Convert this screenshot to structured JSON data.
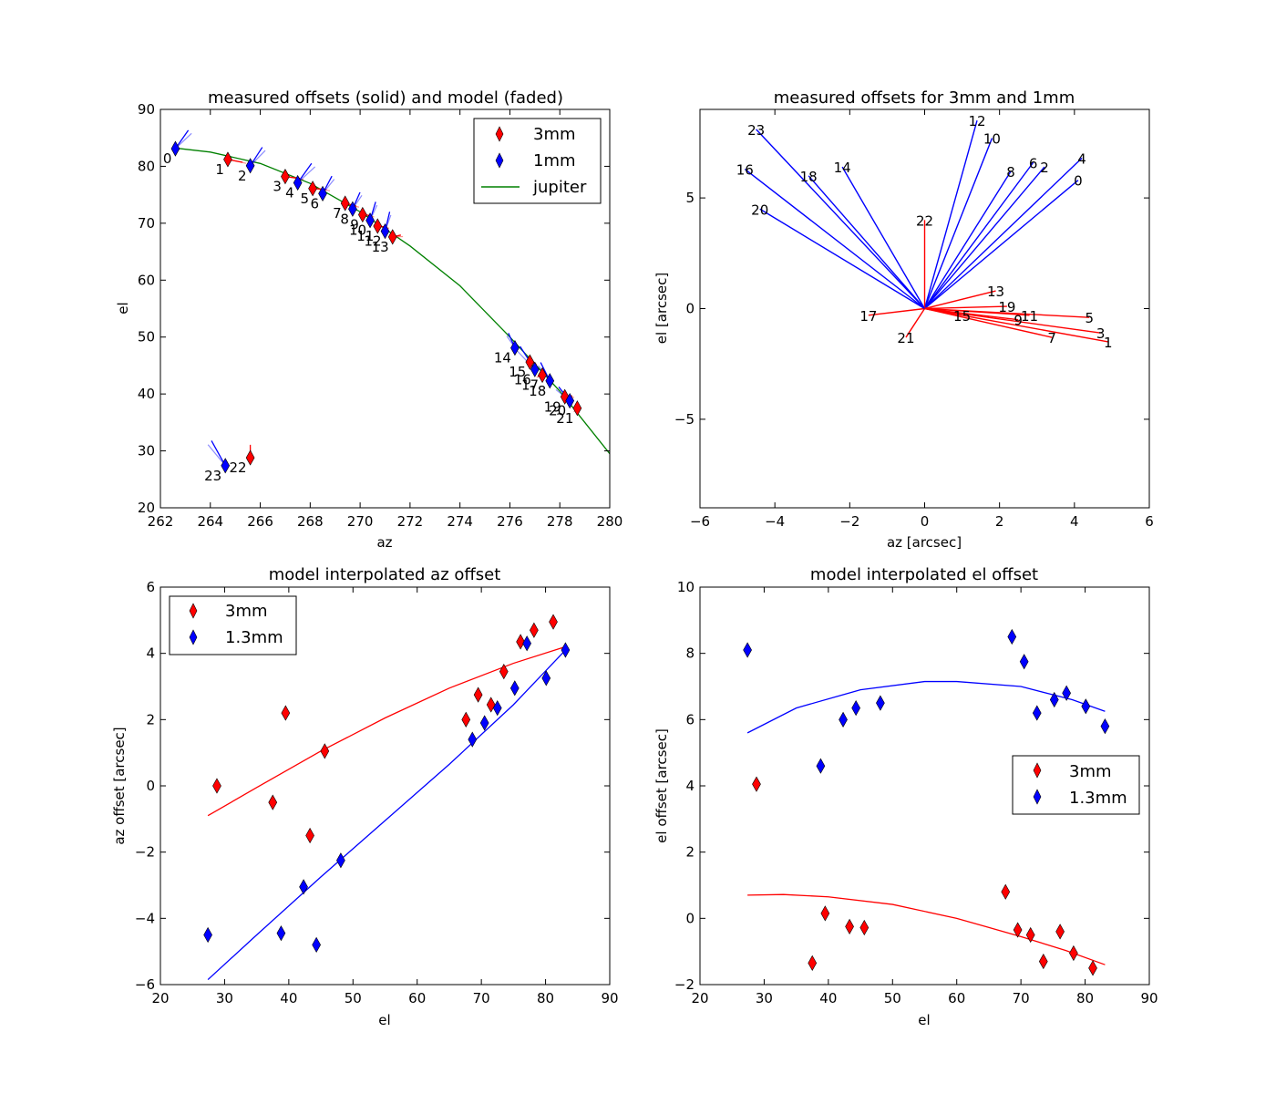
{
  "chart_data": [
    {
      "id": "tl",
      "type": "scatter",
      "title": "measured offsets (solid) and model (faded)",
      "xlabel": "az",
      "ylabel": "el",
      "xlim": [
        262,
        280
      ],
      "ylim": [
        20,
        90
      ],
      "xticks": [
        262,
        264,
        266,
        268,
        270,
        272,
        274,
        276,
        278,
        280
      ],
      "yticks": [
        20,
        30,
        40,
        50,
        60,
        70,
        80,
        90
      ],
      "legend_position": "top-right",
      "legend": [
        {
          "label": "3mm",
          "marker": "diamond",
          "color": "#ff0000"
        },
        {
          "label": "1mm",
          "marker": "diamond",
          "color": "#0000ff"
        },
        {
          "label": "jupiter",
          "marker": "line",
          "color": "#008000"
        }
      ],
      "jupiter_track": {
        "az": [
          262.6,
          264,
          266,
          268,
          270,
          272,
          274,
          276,
          278,
          280
        ],
        "el": [
          83.2,
          82.5,
          80.5,
          77.0,
          72.0,
          66.0,
          59.0,
          50.0,
          40.5,
          29.5
        ]
      },
      "points": [
        {
          "label": "0",
          "az": 262.6,
          "el": 83.1,
          "band": "1mm",
          "vec": [
            1.4,
            2.0
          ]
        },
        {
          "label": "1",
          "az": 264.7,
          "el": 81.2,
          "band": "3mm",
          "vec": [
            1.6,
            -0.3
          ]
        },
        {
          "label": "2",
          "az": 265.6,
          "el": 80.1,
          "band": "1mm",
          "vec": [
            1.3,
            2.0
          ]
        },
        {
          "label": "3",
          "az": 267.0,
          "el": 78.2,
          "band": "3mm",
          "vec": [
            1.6,
            -0.2
          ]
        },
        {
          "label": "4",
          "az": 267.5,
          "el": 77.1,
          "band": "1mm",
          "vec": [
            1.5,
            2.1
          ]
        },
        {
          "label": "5",
          "az": 268.1,
          "el": 76.1,
          "band": "3mm",
          "vec": [
            1.5,
            -0.1
          ]
        },
        {
          "label": "6",
          "az": 268.5,
          "el": 75.2,
          "band": "1mm",
          "vec": [
            1.0,
            1.9
          ]
        },
        {
          "label": "7",
          "az": 269.4,
          "el": 73.5,
          "band": "3mm",
          "vec": [
            1.2,
            -0.3
          ]
        },
        {
          "label": "8",
          "az": 269.7,
          "el": 72.5,
          "band": "1mm",
          "vec": [
            0.8,
            1.8
          ]
        },
        {
          "label": "9",
          "az": 270.1,
          "el": 71.5,
          "band": "3mm",
          "vec": [
            1.0,
            -0.1
          ]
        },
        {
          "label": "10",
          "az": 270.4,
          "el": 70.5,
          "band": "1mm",
          "vec": [
            0.6,
            2.0
          ]
        },
        {
          "label": "11",
          "az": 270.7,
          "el": 69.5,
          "band": "3mm",
          "vec": [
            1.0,
            -0.1
          ]
        },
        {
          "label": "12",
          "az": 271.0,
          "el": 68.6,
          "band": "1mm",
          "vec": [
            0.5,
            2.1
          ]
        },
        {
          "label": "13",
          "az": 271.3,
          "el": 67.6,
          "band": "3mm",
          "vec": [
            0.9,
            0.2
          ]
        },
        {
          "label": "14",
          "az": 276.2,
          "el": 48.1,
          "band": "1mm",
          "vec": [
            -0.7,
            1.6
          ]
        },
        {
          "label": "15",
          "az": 276.8,
          "el": 45.6,
          "band": "3mm",
          "vec": [
            0.6,
            -0.1
          ]
        },
        {
          "label": "16",
          "az": 277.0,
          "el": 44.3,
          "band": "1mm",
          "vec": [
            -1.6,
            2.5
          ]
        },
        {
          "label": "17",
          "az": 277.3,
          "el": 43.3,
          "band": "3mm",
          "vec": [
            -0.5,
            -0.1
          ]
        },
        {
          "label": "18",
          "az": 277.6,
          "el": 42.3,
          "band": "1mm",
          "vec": [
            -1.0,
            2.0
          ]
        },
        {
          "label": "19",
          "az": 278.2,
          "el": 39.5,
          "band": "3mm",
          "vec": [
            0.8,
            0.1
          ]
        },
        {
          "label": "20",
          "az": 278.4,
          "el": 38.8,
          "band": "1mm",
          "vec": [
            -1.2,
            1.5
          ]
        },
        {
          "label": "21",
          "az": 278.7,
          "el": 37.5,
          "band": "3mm",
          "vec": [
            -0.3,
            -0.3
          ]
        },
        {
          "label": "22",
          "az": 265.6,
          "el": 28.8,
          "band": "3mm",
          "vec": [
            0.0,
            1.4
          ]
        },
        {
          "label": "23",
          "az": 264.6,
          "el": 27.4,
          "band": "1mm",
          "vec": [
            -1.5,
            2.7
          ]
        }
      ]
    },
    {
      "id": "tr",
      "type": "vector",
      "title": "measured offsets for 3mm and 1mm",
      "xlabel": "az [arcsec]",
      "ylabel": "el [arcsec]",
      "xlim": [
        -6,
        6
      ],
      "ylim": [
        -9,
        9
      ],
      "xticks": [
        -6,
        -4,
        -2,
        0,
        2,
        4,
        6
      ],
      "yticks": [
        -5,
        0,
        5
      ],
      "vectors": [
        {
          "label": "0",
          "x": 4.1,
          "y": 5.8,
          "color": "#0000ff"
        },
        {
          "label": "1",
          "x": 4.9,
          "y": -1.5,
          "color": "#ff0000"
        },
        {
          "label": "2",
          "x": 3.2,
          "y": 6.4,
          "color": "#0000ff"
        },
        {
          "label": "3",
          "x": 4.7,
          "y": -1.1,
          "color": "#ff0000"
        },
        {
          "label": "4",
          "x": 4.2,
          "y": 6.8,
          "color": "#0000ff"
        },
        {
          "label": "5",
          "x": 4.4,
          "y": -0.4,
          "color": "#ff0000"
        },
        {
          "label": "6",
          "x": 2.9,
          "y": 6.6,
          "color": "#0000ff"
        },
        {
          "label": "7",
          "x": 3.4,
          "y": -1.3,
          "color": "#ff0000"
        },
        {
          "label": "8",
          "x": 2.3,
          "y": 6.2,
          "color": "#0000ff"
        },
        {
          "label": "9",
          "x": 2.5,
          "y": -0.5,
          "color": "#ff0000"
        },
        {
          "label": "10",
          "x": 1.8,
          "y": 7.7,
          "color": "#0000ff"
        },
        {
          "label": "11",
          "x": 2.8,
          "y": -0.3,
          "color": "#ff0000"
        },
        {
          "label": "12",
          "x": 1.4,
          "y": 8.5,
          "color": "#0000ff"
        },
        {
          "label": "13",
          "x": 1.9,
          "y": 0.8,
          "color": "#ff0000"
        },
        {
          "label": "14",
          "x": -2.2,
          "y": 6.4,
          "color": "#0000ff"
        },
        {
          "label": "15",
          "x": 1.0,
          "y": -0.3,
          "color": "#ff0000"
        },
        {
          "label": "16",
          "x": -4.8,
          "y": 6.3,
          "color": "#0000ff"
        },
        {
          "label": "17",
          "x": -1.5,
          "y": -0.3,
          "color": "#ff0000"
        },
        {
          "label": "18",
          "x": -3.1,
          "y": 6.0,
          "color": "#0000ff"
        },
        {
          "label": "19",
          "x": 2.2,
          "y": 0.1,
          "color": "#ff0000"
        },
        {
          "label": "20",
          "x": -4.4,
          "y": 4.5,
          "color": "#0000ff"
        },
        {
          "label": "21",
          "x": -0.5,
          "y": -1.3,
          "color": "#ff0000"
        },
        {
          "label": "22",
          "x": 0.0,
          "y": 4.0,
          "color": "#ff0000"
        },
        {
          "label": "23",
          "x": -4.5,
          "y": 8.1,
          "color": "#0000ff"
        }
      ]
    },
    {
      "id": "bl",
      "type": "scatter",
      "title": "model interpolated az offset",
      "xlabel": "el",
      "ylabel": "az offset [arcsec]",
      "xlim": [
        20,
        90
      ],
      "ylim": [
        -6,
        6
      ],
      "xticks": [
        20,
        30,
        40,
        50,
        60,
        70,
        80,
        90
      ],
      "yticks": [
        -6,
        -4,
        -2,
        0,
        2,
        4,
        6
      ],
      "legend_position": "top-left",
      "legend": [
        {
          "label": "3mm",
          "color": "#ff0000"
        },
        {
          "label": "1.3mm",
          "color": "#0000ff"
        }
      ],
      "series": [
        {
          "name": "3mm",
          "color": "#ff0000",
          "x": [
            28.8,
            37.5,
            39.5,
            43.3,
            45.6,
            67.6,
            69.5,
            71.5,
            73.5,
            76.1,
            78.2,
            81.2
          ],
          "y": [
            0.0,
            -0.5,
            2.2,
            -1.5,
            1.05,
            2.0,
            2.75,
            2.45,
            3.45,
            4.35,
            4.7,
            4.95
          ],
          "model_x": [
            27.4,
            35,
            45,
            55,
            65,
            75,
            83.1
          ],
          "model_y": [
            -0.9,
            -0.05,
            1.05,
            2.05,
            2.95,
            3.7,
            4.2
          ]
        },
        {
          "name": "1.3mm",
          "color": "#0000ff",
          "x": [
            27.4,
            38.8,
            42.3,
            44.3,
            48.1,
            68.6,
            70.5,
            72.5,
            75.2,
            77.1,
            80.1,
            83.1
          ],
          "y": [
            -4.5,
            -4.45,
            -3.05,
            -4.8,
            -2.25,
            1.4,
            1.9,
            2.35,
            2.95,
            4.3,
            3.25,
            4.1
          ],
          "model_x": [
            27.4,
            35,
            45,
            55,
            65,
            75,
            83.1
          ],
          "model_y": [
            -5.85,
            -4.5,
            -2.75,
            -1.05,
            0.65,
            2.45,
            4.1
          ]
        }
      ]
    },
    {
      "id": "br",
      "type": "scatter",
      "title": "model interpolated el offset",
      "xlabel": "el",
      "ylabel": "el offset [arcsec]",
      "xlim": [
        20,
        90
      ],
      "ylim": [
        -2,
        10
      ],
      "xticks": [
        20,
        30,
        40,
        50,
        60,
        70,
        80,
        90
      ],
      "yticks": [
        -2,
        0,
        2,
        4,
        6,
        8,
        10
      ],
      "legend_position": "center-right",
      "legend": [
        {
          "label": "3mm",
          "color": "#ff0000"
        },
        {
          "label": "1.3mm",
          "color": "#0000ff"
        }
      ],
      "series": [
        {
          "name": "3mm",
          "color": "#ff0000",
          "x": [
            28.8,
            37.5,
            39.5,
            43.3,
            45.6,
            67.6,
            69.5,
            71.5,
            73.5,
            76.1,
            78.2,
            81.2
          ],
          "y": [
            4.05,
            -1.35,
            0.15,
            -0.25,
            -0.28,
            0.8,
            -0.35,
            -0.5,
            -1.3,
            -0.4,
            -1.05,
            -1.5
          ],
          "model_x": [
            27.4,
            33,
            40,
            50,
            60,
            70,
            77,
            83.1
          ],
          "model_y": [
            0.7,
            0.72,
            0.65,
            0.42,
            0.0,
            -0.55,
            -0.97,
            -1.4
          ]
        },
        {
          "name": "1.3mm",
          "color": "#0000ff",
          "x": [
            27.4,
            38.8,
            42.3,
            44.3,
            48.1,
            68.6,
            70.5,
            72.5,
            75.2,
            77.1,
            80.1,
            83.1
          ],
          "y": [
            8.1,
            4.6,
            6.0,
            6.35,
            6.5,
            8.5,
            7.75,
            6.2,
            6.6,
            6.8,
            6.4,
            5.8
          ],
          "model_x": [
            27.4,
            35,
            45,
            55,
            60,
            70,
            78,
            83.1
          ],
          "model_y": [
            5.6,
            6.35,
            6.9,
            7.15,
            7.15,
            7.0,
            6.6,
            6.25
          ]
        }
      ]
    }
  ]
}
